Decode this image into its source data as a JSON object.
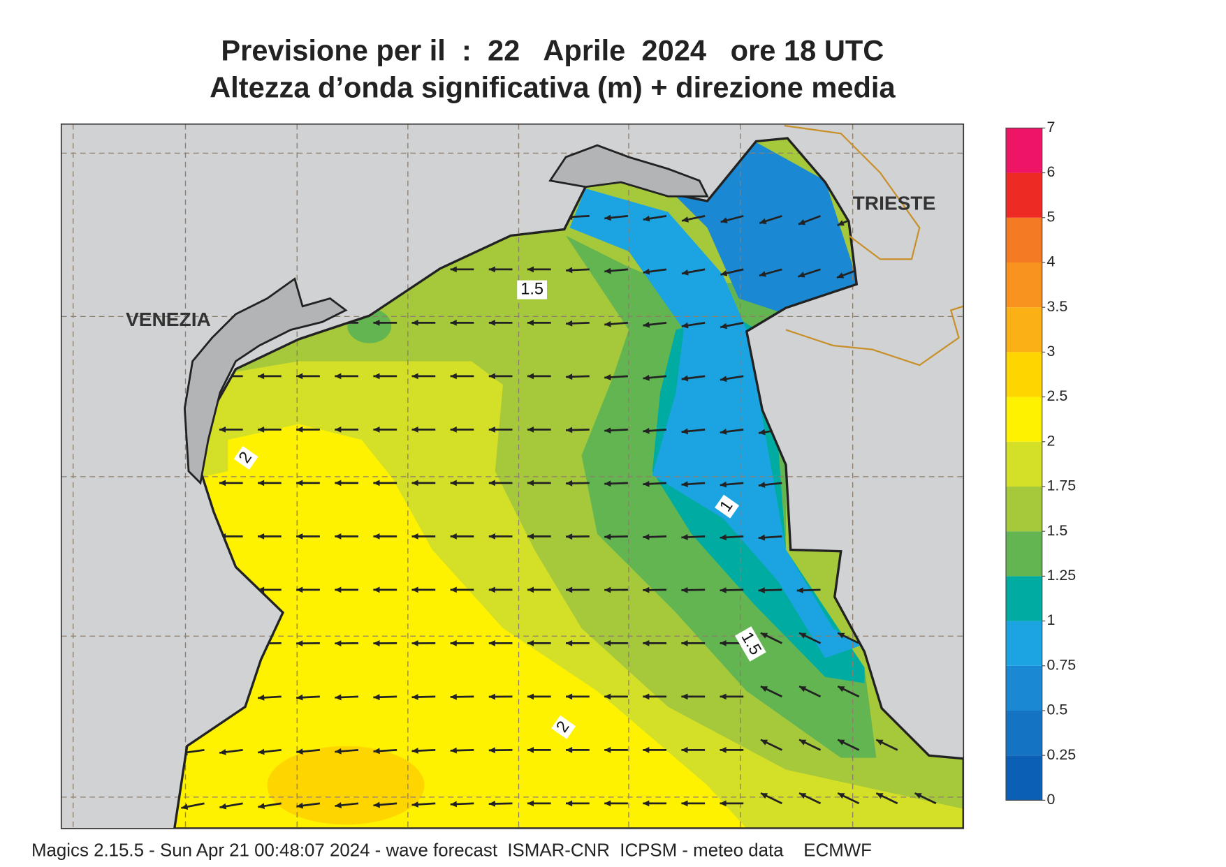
{
  "header": {
    "title": "Previsione per il  :  22   Aprile  2024   ore 18 UTC",
    "subtitle": "Altezza d’onda significativa (m) + direzione media"
  },
  "map": {
    "places": [
      "VENEZIA",
      "TRIESTE"
    ],
    "contour_labels": [
      "1.5",
      "2",
      "1",
      "1.5",
      "2"
    ]
  },
  "colorbar": {
    "levels": [
      0,
      0.25,
      0.5,
      0.75,
      1,
      1.25,
      1.5,
      1.75,
      2,
      2.5,
      3,
      3.5,
      4,
      5,
      6,
      7
    ],
    "colors": [
      "#0b5fb4",
      "#1573c4",
      "#1a88d2",
      "#1ca3e2",
      "#00aca2",
      "#63b552",
      "#a6c83b",
      "#d4df27",
      "#fff200",
      "#ffd500",
      "#fbb116",
      "#f7931e",
      "#f47a24",
      "#ee2a24",
      "#ee1566"
    ]
  },
  "footer": "Magics 2.15.5 - Sun Apr 21 00:48:07 2024 - wave forecast  ISMAR-CNR  ICPSM - meteo data    ECMWF"
}
